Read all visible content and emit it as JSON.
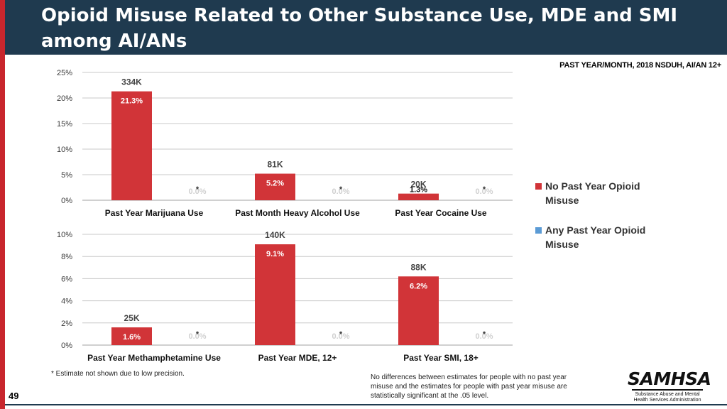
{
  "title": "Opioid Misuse Related to Other Substance Use, MDE and SMI among AI/ANs",
  "source": "PAST YEAR/MONTH, 2018 NSDUH, AI/AN 12+",
  "legend": {
    "no_misuse": "No Past Year Opioid Misuse",
    "any_misuse": "Any Past Year Opioid Misuse"
  },
  "footnote_left": "* Estimate not shown due to low precision.",
  "footnote_right": "No differences between estimates for people with no past year misuse and the estimates for people with past year misuse are statistically significant at the .05 level.",
  "page_number": "49",
  "logo": {
    "name": "SAMHSA",
    "subtitle": "Substance Abuse and Mental Health Services Administration"
  },
  "colors": {
    "no_misuse": "#d13438",
    "any_misuse": "#5b9bd5",
    "title_bg": "#1f3a4f",
    "stripe": "#c8262d"
  },
  "chart_data": [
    {
      "type": "bar",
      "title": "",
      "categories": [
        "Past Year Marijuana Use",
        "Past Month Heavy Alcohol Use",
        "Past Year Cocaine Use"
      ],
      "ylim": [
        0,
        25
      ],
      "yticks": [
        "0%",
        "5%",
        "10%",
        "15%",
        "20%",
        "25%"
      ],
      "series": [
        {
          "name": "No Past Year Opioid Misuse",
          "values": [
            21.3,
            5.2,
            1.3
          ],
          "value_labels": [
            "21.3%",
            "5.2%",
            "1.3%"
          ],
          "count_labels": [
            "334K",
            "81K",
            "20K"
          ]
        },
        {
          "name": "Any Past Year Opioid Misuse",
          "values": [
            0,
            0,
            0
          ],
          "value_labels": [
            "0.0%",
            "0.0%",
            "0.0%"
          ],
          "suppressed_marks": [
            "*",
            "*",
            "*"
          ]
        }
      ]
    },
    {
      "type": "bar",
      "title": "",
      "categories": [
        "Past Year Methamphetamine Use",
        "Past Year MDE, 12+",
        "Past Year SMI, 18+"
      ],
      "ylim": [
        0,
        10
      ],
      "yticks": [
        "0%",
        "2%",
        "4%",
        "6%",
        "8%",
        "10%"
      ],
      "series": [
        {
          "name": "No Past Year Opioid Misuse",
          "values": [
            1.6,
            9.1,
            6.2
          ],
          "value_labels": [
            "1.6%",
            "9.1%",
            "6.2%"
          ],
          "count_labels": [
            "25K",
            "140K",
            "88K"
          ]
        },
        {
          "name": "Any Past Year Opioid Misuse",
          "values": [
            0,
            0,
            0
          ],
          "value_labels": [
            "0.0%",
            "0.0%",
            "0.0%"
          ],
          "suppressed_marks": [
            "*",
            "*",
            "*"
          ]
        }
      ]
    }
  ]
}
